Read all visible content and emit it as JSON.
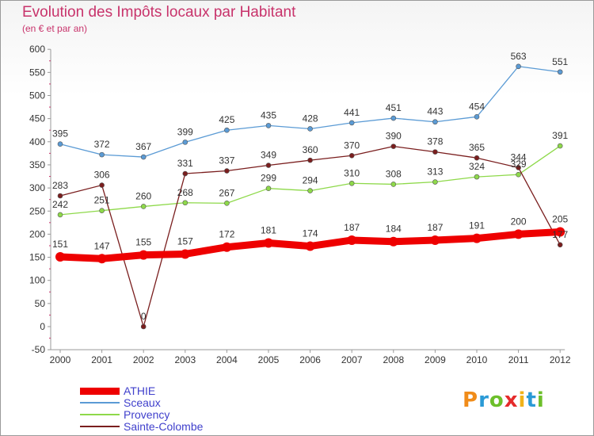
{
  "title": "Evolution des Impôts locaux par Habitant",
  "subtitle": "(en € et par an)",
  "logo": "Proxiti",
  "chart_data": {
    "type": "line",
    "title": "Evolution des Impôts locaux par Habitant",
    "subtitle": "(en € et par an)",
    "xlabel": "",
    "ylabel": "",
    "x": [
      "2000",
      "2001",
      "2002",
      "2003",
      "2004",
      "2005",
      "2006",
      "2007",
      "2008",
      "2009",
      "2010",
      "2011",
      "2012"
    ],
    "ylim": [
      -50,
      600
    ],
    "yticks": [
      -50,
      0,
      50,
      100,
      150,
      200,
      250,
      300,
      350,
      400,
      450,
      500,
      550,
      600
    ],
    "grid": false,
    "legend_position": "bottom-left",
    "series": [
      {
        "name": "ATHIE",
        "color": "#ee0000",
        "values": [
          151,
          147,
          155,
          157,
          172,
          181,
          174,
          187,
          184,
          187,
          191,
          200,
          205
        ]
      },
      {
        "name": "Sceaux",
        "color": "#5b9bd5",
        "values": [
          395,
          372,
          367,
          399,
          425,
          435,
          428,
          441,
          451,
          443,
          454,
          563,
          551
        ]
      },
      {
        "name": "Provency",
        "color": "#8ed94a",
        "values": [
          242,
          251,
          260,
          268,
          267,
          299,
          294,
          310,
          308,
          313,
          324,
          329,
          391
        ]
      },
      {
        "name": "Sainte-Colombe",
        "color": "#7a1e1e",
        "values": [
          283,
          306,
          0,
          331,
          337,
          349,
          360,
          370,
          390,
          378,
          365,
          344,
          177
        ]
      }
    ]
  }
}
